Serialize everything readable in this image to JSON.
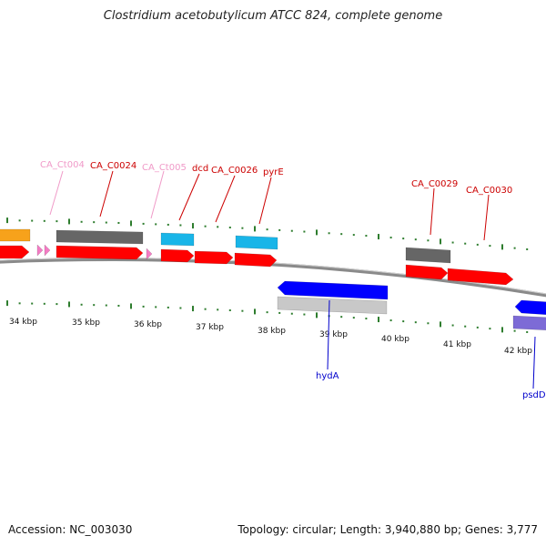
{
  "title": "Clostridium acetobutylicum ATCC 824, complete genome",
  "footer": {
    "accession": "Accession: NC_003030",
    "stats": "Topology: circular; Length: 3,940,880 bp; Genes: 3,777"
  },
  "colors": {
    "backbone": "#8a8a8a",
    "tick": "#2e7d2e",
    "cds": "#ff0000",
    "gene_gray": "#666666",
    "gene_light": "#c8c8c8",
    "gene_cyan": "#19b5e8",
    "gene_orange": "#f7a21b",
    "gene_blue": "#0000ff",
    "gene_purple": "#7d6bd6",
    "trna_pink": "#f47cc4",
    "label_red": "#cc0000",
    "label_pink": "#f09ac8",
    "label_blue": "#0000cc"
  },
  "kbp_labels": [
    "34 kbp",
    "35 kbp",
    "36 kbp",
    "37 kbp",
    "38 kbp",
    "39 kbp",
    "40 kbp",
    "41 kbp",
    "42 kbp"
  ],
  "gene_labels": [
    {
      "text": "CA_Ct004",
      "kind": "pink"
    },
    {
      "text": "CA_C0024",
      "kind": "red"
    },
    {
      "text": "CA_Ct005",
      "kind": "pink"
    },
    {
      "text": "dcd",
      "kind": "red"
    },
    {
      "text": "CA_C0026",
      "kind": "red"
    },
    {
      "text": "pyrE",
      "kind": "red"
    },
    {
      "text": "CA_C0029",
      "kind": "red"
    },
    {
      "text": "CA_C0030",
      "kind": "red"
    },
    {
      "text": "hydA",
      "kind": "blue"
    },
    {
      "text": "psdD",
      "kind": "blue"
    }
  ]
}
